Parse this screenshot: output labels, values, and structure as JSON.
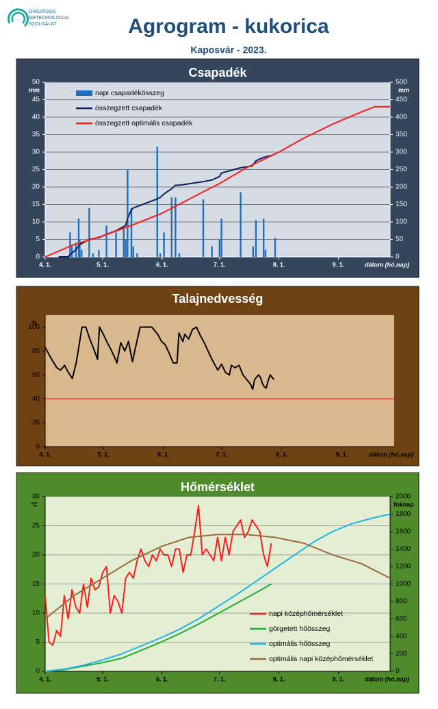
{
  "header": {
    "logo": [
      "ORSZÁGOS",
      "METEOROLÓGIAI",
      "SZOLGÁLAT"
    ],
    "title": "Agrogram - kukorica",
    "subtitle": "Kaposvár - 2023."
  },
  "chart_data": [
    {
      "type": "combo",
      "title": "Csapadék",
      "y_unit": "mm",
      "y2_unit": "mm",
      "x_label": "dátum (hó.nap)",
      "legend": "upper left",
      "grid": true,
      "xlim": [
        0,
        180
      ],
      "xticks": [
        {
          "value": 0,
          "label": "4. 1."
        },
        {
          "value": 30,
          "label": "5. 1."
        },
        {
          "value": 61,
          "label": "6. 1."
        },
        {
          "value": 91,
          "label": "7. 1."
        },
        {
          "value": 122,
          "label": "8. 1."
        },
        {
          "value": 153,
          "label": "9. 1."
        }
      ],
      "ylim": [
        0,
        50
      ],
      "yticks": [
        0,
        5,
        10,
        15,
        20,
        25,
        30,
        35,
        40,
        45,
        50
      ],
      "y2lim": [
        0,
        500
      ],
      "y2ticks": [
        0,
        50,
        100,
        150,
        200,
        250,
        300,
        350,
        400,
        450,
        500
      ],
      "series": [
        {
          "name": "napi csapadékösszeg",
          "type": "bar",
          "color": "#1f6fbf",
          "x": [
            13,
            14,
            16,
            17.5,
            18,
            19,
            23,
            25,
            28,
            32,
            37,
            41,
            42,
            43,
            45,
            46,
            48,
            58.5,
            60,
            62,
            66,
            68,
            70,
            82.5,
            87,
            91,
            92,
            102,
            108.5,
            110,
            114,
            115,
            120
          ],
          "values": [
            7,
            3,
            4,
            11,
            5,
            2,
            14,
            1,
            2,
            9,
            7,
            8,
            5,
            25,
            14,
            3,
            1,
            31.5,
            1,
            7,
            17,
            17,
            1,
            16.5,
            3,
            5,
            11,
            18.5,
            3,
            10.5,
            11,
            2,
            5.5
          ]
        },
        {
          "name": "összegzett csapadék",
          "type": "line",
          "axis": "y2",
          "color": "#0d1f5c",
          "x": [
            7,
            12,
            13,
            16,
            18,
            23,
            28,
            32,
            37,
            42,
            43,
            45,
            46,
            58,
            60,
            62,
            66,
            68,
            70,
            82,
            87,
            91,
            92,
            102,
            108,
            110,
            114,
            118,
            120
          ],
          "values": [
            0,
            0,
            7,
            20,
            35,
            50,
            55,
            65,
            75,
            90,
            110,
            135,
            140,
            165,
            170,
            180,
            195,
            205,
            205,
            215,
            220,
            230,
            240,
            255,
            260,
            275,
            285,
            290,
            295
          ]
        },
        {
          "name": "összegzett optimális  csapadék",
          "type": "line",
          "axis": "y2",
          "color": "#ff1a1a",
          "x": [
            0,
            15,
            30,
            45,
            61,
            75,
            91,
            105,
            122,
            135,
            150,
            165,
            172,
            180
          ],
          "values": [
            0,
            35,
            60,
            90,
            125,
            165,
            210,
            255,
            300,
            340,
            380,
            415,
            430,
            430
          ]
        }
      ]
    },
    {
      "type": "line",
      "title": "Talajnedvesség",
      "y_unit": "%",
      "x_label": "dátum (hó.nap)",
      "grid": false,
      "xlim": [
        0,
        180
      ],
      "xticks": [
        {
          "value": 0,
          "label": "4. 1."
        },
        {
          "value": 30,
          "label": "5. 1."
        },
        {
          "value": 61,
          "label": "6. 1."
        },
        {
          "value": 91,
          "label": "7. 1."
        },
        {
          "value": 122,
          "label": "8. 1."
        },
        {
          "value": 153,
          "label": "9. 1."
        }
      ],
      "ylim": [
        0,
        110
      ],
      "yticks": [
        0,
        20,
        40,
        60,
        80,
        100
      ],
      "reference_line": {
        "value": 40,
        "color": "#e02020"
      },
      "series": [
        {
          "type": "line",
          "color": "#000000",
          "x": [
            0,
            3,
            6,
            8,
            10,
            12,
            14,
            16,
            17,
            19,
            21,
            23,
            25,
            27,
            28,
            30,
            32,
            34,
            36,
            37,
            39,
            41,
            43,
            45,
            47,
            49,
            52,
            55,
            58,
            60,
            62,
            64,
            66,
            68,
            69,
            71,
            72,
            74,
            76,
            78,
            80,
            82,
            84,
            86,
            88,
            89,
            91,
            93,
            95,
            96,
            98,
            100,
            102,
            104,
            106,
            107,
            108,
            110,
            111,
            112,
            113,
            114,
            115,
            116,
            117,
            118
          ],
          "values": [
            83,
            74,
            66,
            64,
            68,
            62,
            57,
            70,
            80,
            100,
            100,
            90,
            82,
            73,
            100,
            94,
            87,
            81,
            74,
            70,
            87,
            80,
            88,
            71,
            86,
            100,
            100,
            100,
            94,
            88,
            85,
            78,
            70,
            70,
            95,
            88,
            94,
            90,
            98,
            100,
            93,
            87,
            80,
            73,
            67,
            64,
            69,
            62,
            60,
            68,
            66,
            68,
            60,
            56,
            52,
            48,
            56,
            60,
            58,
            53,
            50,
            49,
            55,
            60,
            58,
            56
          ]
        }
      ]
    },
    {
      "type": "combo",
      "title": "Hőmérséklet",
      "y_unit": "°C",
      "y2_unit": "foknap",
      "x_label": "dátum (hó.nap)",
      "legend": "lower right",
      "grid": true,
      "xlim": [
        0,
        180
      ],
      "xticks": [
        {
          "value": 0,
          "label": "4. 1."
        },
        {
          "value": 30,
          "label": "5. 1."
        },
        {
          "value": 61,
          "label": "6. 1."
        },
        {
          "value": 91,
          "label": "7. 1."
        },
        {
          "value": 122,
          "label": "8. 1."
        },
        {
          "value": 153,
          "label": "9. 1."
        }
      ],
      "ylim": [
        0,
        30
      ],
      "yticks": [
        0,
        5,
        10,
        15,
        20,
        25,
        30
      ],
      "y2lim": [
        0,
        2000
      ],
      "y2ticks": [
        0,
        200,
        400,
        600,
        800,
        1000,
        1200,
        1400,
        1600,
        1800,
        2000
      ],
      "series": [
        {
          "name": "napi középhőmérséklet",
          "type": "line",
          "color": "#ff1a1a",
          "x": [
            0,
            2,
            4,
            6,
            8,
            10,
            12,
            14,
            16,
            18,
            20,
            22,
            24,
            26,
            28,
            30,
            32,
            34,
            36,
            38,
            40,
            42,
            44,
            46,
            48,
            50,
            52,
            54,
            56,
            58,
            60,
            62,
            64,
            66,
            68,
            70,
            72,
            74,
            76,
            78,
            80,
            82,
            84,
            86,
            88,
            90,
            92,
            94,
            96,
            98,
            100,
            102,
            104,
            106,
            108,
            110,
            112,
            114,
            116,
            118
          ],
          "values": [
            13,
            5,
            4.5,
            7,
            6,
            13,
            9,
            14,
            11,
            10,
            15,
            11,
            16,
            14,
            14.5,
            17,
            18,
            10,
            13,
            12,
            10,
            16,
            17,
            16,
            19,
            21,
            19,
            18,
            20,
            19,
            21,
            20,
            20,
            18,
            21,
            21,
            17,
            20,
            20,
            24,
            28.5,
            20,
            21,
            20,
            19,
            23,
            19,
            23,
            20,
            24,
            25,
            26,
            23,
            24,
            26,
            25,
            24,
            20,
            18,
            22
          ]
        },
        {
          "name": "görgetett hőösszeg",
          "type": "line",
          "axis": "y2",
          "color": "#1fae3a",
          "x": [
            0,
            10,
            20,
            30,
            40,
            50,
            60,
            70,
            80,
            90,
            100,
            110,
            118
          ],
          "values": [
            0,
            20,
            60,
            100,
            150,
            240,
            330,
            430,
            540,
            660,
            780,
            900,
            1000
          ]
        },
        {
          "name": "optimális hőösszeg",
          "type": "line",
          "axis": "y2",
          "color": "#1fb4ea",
          "x": [
            0,
            10,
            20,
            30,
            40,
            50,
            60,
            70,
            80,
            90,
            100,
            110,
            120,
            130,
            140,
            150,
            160,
            170,
            180
          ],
          "values": [
            0,
            25,
            70,
            130,
            200,
            290,
            380,
            480,
            600,
            740,
            880,
            1030,
            1180,
            1330,
            1480,
            1600,
            1690,
            1750,
            1800
          ]
        },
        {
          "name": "optimális napi középhőmérséklet",
          "type": "line",
          "color": "#9a6a3a",
          "x": [
            0,
            15,
            30,
            45,
            61,
            75,
            90,
            105,
            120,
            135,
            150,
            165,
            180
          ],
          "values": [
            9,
            13,
            16,
            19,
            21.5,
            23,
            23.5,
            23.5,
            23,
            22,
            20,
            18.5,
            16
          ]
        }
      ]
    }
  ]
}
